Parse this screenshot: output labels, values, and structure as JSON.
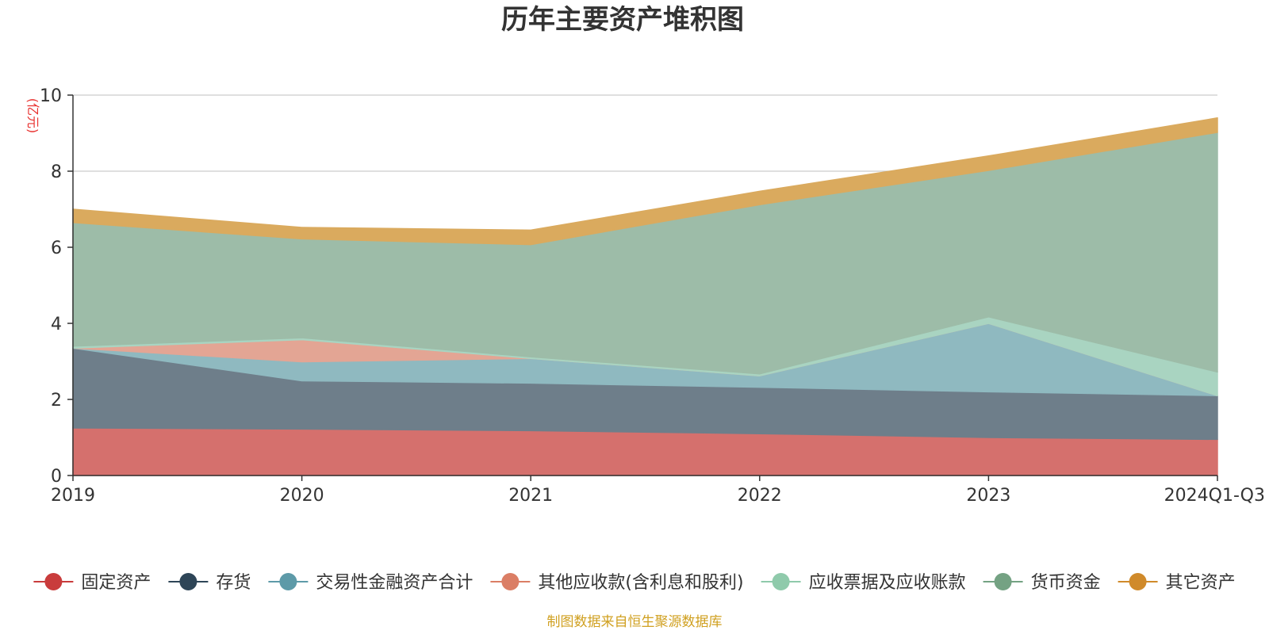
{
  "chart_data": {
    "type": "area",
    "title": "历年主要资产堆积图",
    "ylabel": "(亿元)",
    "xlabel": "",
    "categories": [
      "2019",
      "2020",
      "2021",
      "2022",
      "2023",
      "2024Q1-Q3"
    ],
    "ylim": [
      0,
      10
    ],
    "yticks": [
      0,
      2,
      4,
      6,
      8,
      10
    ],
    "grid": true,
    "legend_position": "bottom",
    "series": [
      {
        "name": "固定资产",
        "color": "#d5706d",
        "marker": "#c93c3c",
        "values": [
          1.25,
          1.22,
          1.18,
          1.1,
          1.0,
          0.95
        ]
      },
      {
        "name": "存货",
        "color": "#6e7e8a",
        "marker": "#2e4557",
        "values": [
          2.1,
          1.27,
          1.25,
          1.22,
          1.2,
          1.15
        ]
      },
      {
        "name": "交易性金融资产合计",
        "color": "#8fb9c0",
        "marker": "#5d9aa8",
        "values": [
          0.0,
          0.5,
          0.65,
          0.3,
          1.8,
          0.0
        ]
      },
      {
        "name": "其他应收款(含利息和股利)",
        "color": "#e3a594",
        "marker": "#db7e65",
        "values": [
          0.0,
          0.58,
          0.0,
          0.0,
          0.0,
          0.0
        ]
      },
      {
        "name": "应收票据及应收账款",
        "color": "#a9d4c1",
        "marker": "#8fcaab",
        "values": [
          0.05,
          0.05,
          0.04,
          0.05,
          0.17,
          0.62
        ]
      },
      {
        "name": "货币资金",
        "color": "#9dbca8",
        "marker": "#74a283",
        "values": [
          3.25,
          2.6,
          2.95,
          4.45,
          3.85,
          6.3
        ]
      },
      {
        "name": "其它资产",
        "color": "#daaa5e",
        "marker": "#d08a2a",
        "values": [
          0.35,
          0.3,
          0.38,
          0.35,
          0.38,
          0.38
        ]
      }
    ]
  },
  "source_note": "制图数据来自恒生聚源数据库"
}
